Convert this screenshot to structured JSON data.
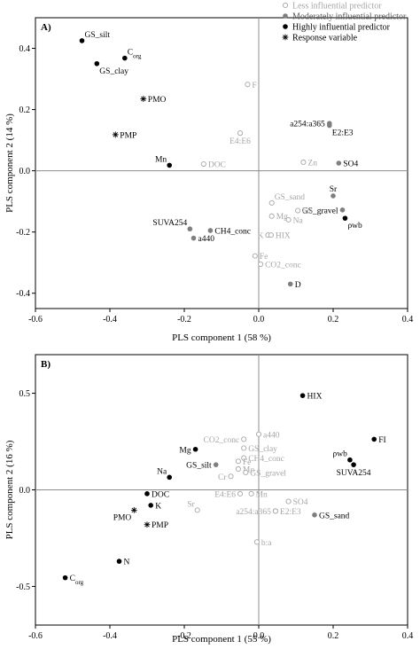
{
  "legend": {
    "items": [
      {
        "kind": "less",
        "label": "Less influential predictor"
      },
      {
        "kind": "moderate",
        "label": "Moderately influential predictor"
      },
      {
        "kind": "high",
        "label": "Highly influential predictor"
      },
      {
        "kind": "response",
        "label": "Response variable"
      }
    ]
  },
  "colors": {
    "high": "#000000",
    "moderate": "#7f7f7f",
    "less_stroke": "#a6a6a6",
    "less_text": "#a6a6a6",
    "response": "#000000"
  },
  "chart_data": [
    {
      "type": "scatter",
      "panel_label": "A)",
      "xlabel": "PLS component 1 (58 %)",
      "ylabel": "PLS component 2 (14 %)",
      "xlim": [
        -0.6,
        0.4
      ],
      "ylim": [
        -0.45,
        0.5
      ],
      "xticks": [
        -0.6,
        -0.4,
        -0.2,
        0.0,
        0.2,
        0.4
      ],
      "xtick_labels": [
        "-0.6",
        "-0.4",
        "-0.2",
        "0.0",
        "0.2",
        "0.4"
      ],
      "yticks": [
        -0.4,
        -0.2,
        0.0,
        0.2,
        0.4
      ],
      "ytick_labels": [
        "-0.4",
        "-0.2",
        "0.0",
        "0.2",
        "0.4"
      ],
      "points": [
        {
          "label": "GS_silt",
          "x": -0.475,
          "y": 0.425,
          "kind": "high",
          "pos": "ne"
        },
        {
          "label": "C",
          "sub": "org",
          "x": -0.36,
          "y": 0.368,
          "kind": "high",
          "pos": "ne"
        },
        {
          "label": "GS_clay",
          "x": -0.435,
          "y": 0.35,
          "kind": "high",
          "pos": "se"
        },
        {
          "label": "PMO",
          "x": -0.31,
          "y": 0.235,
          "kind": "response",
          "pos": "e"
        },
        {
          "label": "PMP",
          "x": -0.385,
          "y": 0.118,
          "kind": "response",
          "pos": "e"
        },
        {
          "label": "Mn",
          "x": -0.24,
          "y": 0.018,
          "kind": "high",
          "pos": "nw"
        },
        {
          "label": "DOC",
          "x": -0.148,
          "y": 0.022,
          "kind": "less",
          "pos": "e"
        },
        {
          "label": "F",
          "x": -0.03,
          "y": 0.282,
          "kind": "less",
          "pos": "e"
        },
        {
          "label": "E4:E6",
          "x": -0.05,
          "y": 0.123,
          "kind": "less",
          "pos": "s"
        },
        {
          "label": "a254:a365",
          "x": 0.19,
          "y": 0.155,
          "kind": "moderate",
          "pos": "w"
        },
        {
          "label": "E2:E3",
          "x": 0.19,
          "y": 0.148,
          "kind": "moderate",
          "pos": "se"
        },
        {
          "label": "Zn",
          "x": 0.12,
          "y": 0.028,
          "kind": "less",
          "pos": "e"
        },
        {
          "label": "SO4",
          "x": 0.215,
          "y": 0.025,
          "kind": "moderate",
          "pos": "e"
        },
        {
          "label": "Sr",
          "x": 0.2,
          "y": -0.082,
          "kind": "moderate",
          "pos": "n"
        },
        {
          "label": "GS_gravel",
          "x": 0.225,
          "y": -0.128,
          "kind": "moderate",
          "pos": "w"
        },
        {
          "label": "ρwb",
          "x": 0.232,
          "y": -0.155,
          "kind": "high",
          "pos": "se"
        },
        {
          "label": "b:a",
          "x": 0.105,
          "y": -0.13,
          "kind": "less",
          "pos": "e"
        },
        {
          "label": "GS_sand",
          "x": 0.035,
          "y": -0.105,
          "kind": "less",
          "pos": "ne"
        },
        {
          "label": "Mg",
          "x": 0.035,
          "y": -0.148,
          "kind": "less",
          "pos": "e"
        },
        {
          "label": "Na",
          "x": 0.08,
          "y": -0.16,
          "kind": "less",
          "pos": "e"
        },
        {
          "label": "K",
          "x": 0.025,
          "y": -0.21,
          "kind": "less",
          "pos": "w"
        },
        {
          "label": "HIX",
          "x": 0.033,
          "y": -0.21,
          "kind": "less",
          "pos": "e"
        },
        {
          "label": "SUVA254",
          "x": -0.185,
          "y": -0.19,
          "kind": "moderate",
          "pos": "nw"
        },
        {
          "label": "CH4_conc",
          "x": -0.13,
          "y": -0.195,
          "kind": "moderate",
          "pos": "e"
        },
        {
          "label": "a440",
          "x": -0.175,
          "y": -0.22,
          "kind": "moderate",
          "pos": "e"
        },
        {
          "label": "Fe",
          "x": -0.01,
          "y": -0.278,
          "kind": "less",
          "pos": "e"
        },
        {
          "label": "CO2_conc",
          "x": 0.005,
          "y": -0.305,
          "kind": "less",
          "pos": "e"
        },
        {
          "label": "D",
          "x": 0.085,
          "y": -0.37,
          "kind": "moderate",
          "pos": "e"
        }
      ]
    },
    {
      "type": "scatter",
      "panel_label": "B)",
      "xlabel": "PLS component 1 (55 %)",
      "ylabel": "PLS component 2 (16 %)",
      "xlim": [
        -0.6,
        0.4
      ],
      "ylim": [
        -0.7,
        0.7
      ],
      "xticks": [
        -0.6,
        -0.4,
        -0.2,
        0.0,
        0.2,
        0.4
      ],
      "xtick_labels": [
        "-0.6",
        "-0.4",
        "-0.2",
        "0.0",
        "0.2",
        "0.4"
      ],
      "yticks": [
        -0.5,
        0.0,
        0.5
      ],
      "ytick_labels": [
        "-0.5",
        "0.0",
        "0.5"
      ],
      "points": [
        {
          "label": "HIX",
          "x": 0.118,
          "y": 0.488,
          "kind": "high",
          "pos": "e"
        },
        {
          "label": "FI",
          "x": 0.31,
          "y": 0.262,
          "kind": "high",
          "pos": "e"
        },
        {
          "label": "ρwb",
          "x": 0.245,
          "y": 0.155,
          "kind": "high",
          "pos": "nw"
        },
        {
          "label": "SUVA254",
          "x": 0.255,
          "y": 0.13,
          "kind": "high",
          "pos": "s"
        },
        {
          "label": "a440",
          "x": 0.0,
          "y": 0.288,
          "kind": "less",
          "pos": "e"
        },
        {
          "label": "CO2_conc",
          "x": -0.04,
          "y": 0.262,
          "kind": "less",
          "pos": "w"
        },
        {
          "label": "GS_clay",
          "x": -0.04,
          "y": 0.216,
          "kind": "less",
          "pos": "e"
        },
        {
          "label": "Mg",
          "x": -0.17,
          "y": 0.21,
          "kind": "high",
          "pos": "w"
        },
        {
          "label": "GS_silt",
          "x": -0.115,
          "y": 0.13,
          "kind": "moderate",
          "pos": "w"
        },
        {
          "label": "CH4_conc",
          "x": -0.04,
          "y": 0.165,
          "kind": "less",
          "pos": "e"
        },
        {
          "label": "Fe",
          "x": -0.055,
          "y": 0.148,
          "kind": "less",
          "pos": "e"
        },
        {
          "label": "Mo",
          "x": -0.055,
          "y": 0.108,
          "kind": "less",
          "pos": "e"
        },
        {
          "label": "GS_gravel",
          "x": -0.035,
          "y": 0.09,
          "kind": "less",
          "pos": "e"
        },
        {
          "label": "Cr",
          "x": -0.075,
          "y": 0.07,
          "kind": "less",
          "pos": "w"
        },
        {
          "label": "Na",
          "x": -0.24,
          "y": 0.065,
          "kind": "high",
          "pos": "nw"
        },
        {
          "label": "DOC",
          "x": -0.3,
          "y": -0.02,
          "kind": "high",
          "pos": "e"
        },
        {
          "label": "E4:E6",
          "x": -0.05,
          "y": -0.02,
          "kind": "less",
          "pos": "w"
        },
        {
          "label": "Mn",
          "x": -0.02,
          "y": -0.02,
          "kind": "less",
          "pos": "e"
        },
        {
          "label": "SO4",
          "x": 0.08,
          "y": -0.06,
          "kind": "less",
          "pos": "e"
        },
        {
          "label": "K",
          "x": -0.29,
          "y": -0.08,
          "kind": "high",
          "pos": "e"
        },
        {
          "label": "PMO",
          "x": -0.335,
          "y": -0.105,
          "kind": "response",
          "pos": "sw"
        },
        {
          "label": "PMP",
          "x": -0.3,
          "y": -0.18,
          "kind": "response",
          "pos": "e"
        },
        {
          "label": "Sr",
          "x": -0.165,
          "y": -0.105,
          "kind": "less",
          "pos": "nw"
        },
        {
          "label": "a254:a365",
          "x": 0.045,
          "y": -0.11,
          "kind": "less",
          "pos": "w"
        },
        {
          "label": "E2:E3",
          "x": 0.045,
          "y": -0.11,
          "kind": "less",
          "pos": "e"
        },
        {
          "label": "GS_sand",
          "x": 0.15,
          "y": -0.13,
          "kind": "moderate",
          "pos": "e"
        },
        {
          "label": "b:a",
          "x": -0.005,
          "y": -0.27,
          "kind": "less",
          "pos": "e"
        },
        {
          "label": "N",
          "x": -0.375,
          "y": -0.37,
          "kind": "high",
          "pos": "e"
        },
        {
          "label": "C",
          "sub": "org",
          "x": -0.52,
          "y": -0.455,
          "kind": "high",
          "pos": "e"
        }
      ]
    }
  ]
}
